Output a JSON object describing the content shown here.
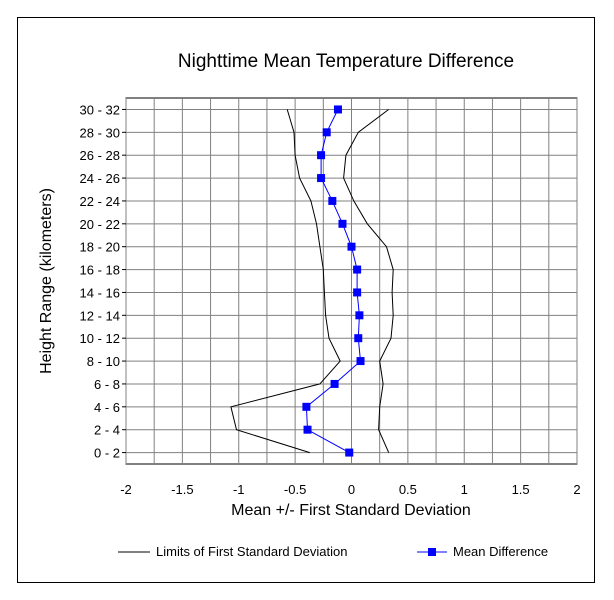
{
  "chart_data": {
    "type": "line",
    "orientation": "horizontal-categories-on-y",
    "title": "Nighttime Mean Temperature Difference",
    "xlabel": "Mean +/- First Standard Deviation",
    "ylabel": "Height Range (kilometers)",
    "xlim": [
      -2,
      2
    ],
    "x_ticks": [
      "-2",
      "-1.5",
      "-1",
      "-0.5",
      "0",
      "0.5",
      "1",
      "1.5",
      "2"
    ],
    "categories": [
      "0 - 2",
      "2 - 4",
      "4 - 6",
      "6 - 8",
      "8 - 10",
      "10 - 12",
      "12 - 14",
      "14 - 16",
      "16 - 18",
      "18 - 20",
      "20 - 22",
      "22 - 24",
      "24 - 26",
      "26 - 28",
      "28 - 30",
      "30 - 32"
    ],
    "grid": true,
    "legend_position": "bottom",
    "series": [
      {
        "name": "Limits of First Standard Deviation",
        "role": "lower",
        "color": "#000000",
        "values": [
          -0.37,
          -1.02,
          -1.07,
          -0.28,
          -0.1,
          -0.2,
          -0.23,
          -0.24,
          -0.25,
          -0.28,
          -0.31,
          -0.36,
          -0.46,
          -0.5,
          -0.51,
          -0.57
        ]
      },
      {
        "name": "Limits of First Standard Deviation",
        "role": "upper",
        "color": "#000000",
        "values": [
          0.33,
          0.24,
          0.25,
          0.28,
          0.25,
          0.35,
          0.37,
          0.36,
          0.37,
          0.31,
          0.14,
          0.02,
          -0.07,
          -0.05,
          0.06,
          0.33
        ]
      },
      {
        "name": "Mean Difference",
        "color": "#0000ff",
        "values": [
          -0.02,
          -0.39,
          -0.4,
          -0.15,
          0.08,
          0.06,
          0.07,
          0.05,
          0.05,
          0.0,
          -0.08,
          -0.17,
          -0.27,
          -0.27,
          -0.22,
          -0.12
        ]
      }
    ]
  }
}
